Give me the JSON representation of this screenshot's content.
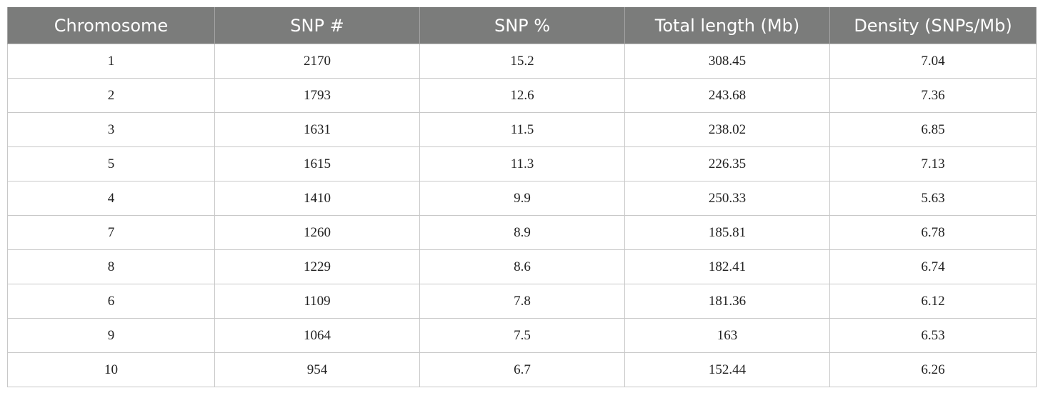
{
  "table": {
    "headers": [
      "Chromosome",
      "SNP #",
      "SNP %",
      "Total length (Mb)",
      "Density (SNPs/Mb)"
    ],
    "rows": [
      [
        "1",
        "2170",
        "15.2",
        "308.45",
        "7.04"
      ],
      [
        "2",
        "1793",
        "12.6",
        "243.68",
        "7.36"
      ],
      [
        "3",
        "1631",
        "11.5",
        "238.02",
        "6.85"
      ],
      [
        "5",
        "1615",
        "11.3",
        "226.35",
        "7.13"
      ],
      [
        "4",
        "1410",
        "9.9",
        "250.33",
        "5.63"
      ],
      [
        "7",
        "1260",
        "8.9",
        "185.81",
        "6.78"
      ],
      [
        "8",
        "1229",
        "8.6",
        "182.41",
        "6.74"
      ],
      [
        "6",
        "1109",
        "7.8",
        "181.36",
        "6.12"
      ],
      [
        "9",
        "1064",
        "7.5",
        "163",
        "6.53"
      ],
      [
        "10",
        "954",
        "6.7",
        "152.44",
        "6.26"
      ]
    ]
  },
  "colors": {
    "header_bg": "#7b7c7b",
    "header_text": "#ffffff",
    "grid_line": "#c8c8c8",
    "cell_text": "#222222"
  }
}
